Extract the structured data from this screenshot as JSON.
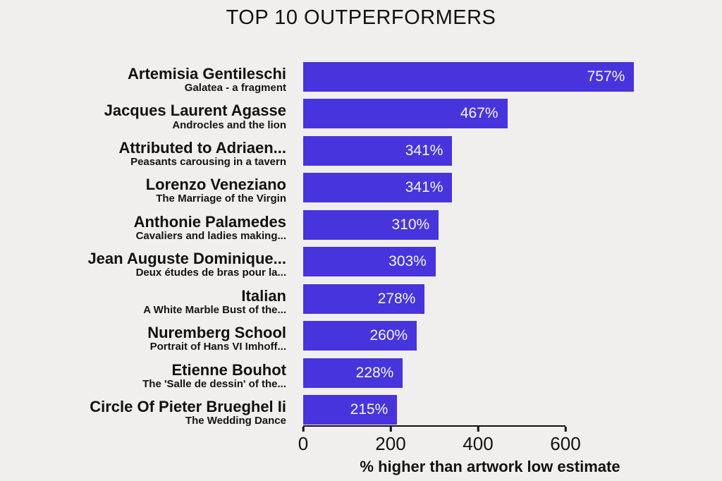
{
  "title": "TOP 10 OUTPERFORMERS",
  "colors": {
    "background": "#f0efed",
    "bar": "#4734dc",
    "text": "#111111",
    "value_label": "#f5f5f5"
  },
  "chart_data": {
    "type": "bar",
    "orientation": "horizontal",
    "title": "TOP 10 OUTPERFORMERS",
    "xlabel": "% higher than artwork low estimate",
    "ylabel": "",
    "xlim": [
      0,
      760
    ],
    "xticks": [
      0,
      200,
      400,
      600
    ],
    "grid": false,
    "legend": false,
    "categories": [
      "Artemisia Gentileschi",
      "Jacques Laurent Agasse",
      "Attributed to Adriaen...",
      "Lorenzo Veneziano",
      "Anthonie Palamedes",
      "Jean Auguste Dominique...",
      "Italian",
      "Nuremberg School",
      "Etienne Bouhot",
      "Circle Of Pieter Brueghel Ii"
    ],
    "values": [
      757,
      467,
      341,
      341,
      310,
      303,
      278,
      260,
      228,
      215
    ],
    "items": [
      {
        "artist": "Artemisia Gentileschi",
        "artwork": "Galatea - a fragment",
        "value": 757,
        "value_label": "757%"
      },
      {
        "artist": "Jacques Laurent Agasse",
        "artwork": "Androcles and the lion",
        "value": 467,
        "value_label": "467%"
      },
      {
        "artist": "Attributed to Adriaen...",
        "artwork": "Peasants carousing in a tavern",
        "value": 341,
        "value_label": "341%"
      },
      {
        "artist": "Lorenzo Veneziano",
        "artwork": "The Marriage of the Virgin",
        "value": 341,
        "value_label": "341%"
      },
      {
        "artist": "Anthonie Palamedes",
        "artwork": "Cavaliers and ladies making...",
        "value": 310,
        "value_label": "310%"
      },
      {
        "artist": "Jean Auguste Dominique...",
        "artwork": "Deux études de bras pour la...",
        "value": 303,
        "value_label": "303%"
      },
      {
        "artist": "Italian",
        "artwork": "A White Marble Bust of the...",
        "value": 278,
        "value_label": "278%"
      },
      {
        "artist": "Nuremberg School",
        "artwork": "Portrait of Hans VI Imhoff...",
        "value": 260,
        "value_label": "260%"
      },
      {
        "artist": "Etienne Bouhot",
        "artwork": "The 'Salle de dessin' of the...",
        "value": 228,
        "value_label": "228%"
      },
      {
        "artist": "Circle Of Pieter Brueghel Ii",
        "artwork": "The Wedding Dance",
        "value": 215,
        "value_label": "215%"
      }
    ]
  }
}
